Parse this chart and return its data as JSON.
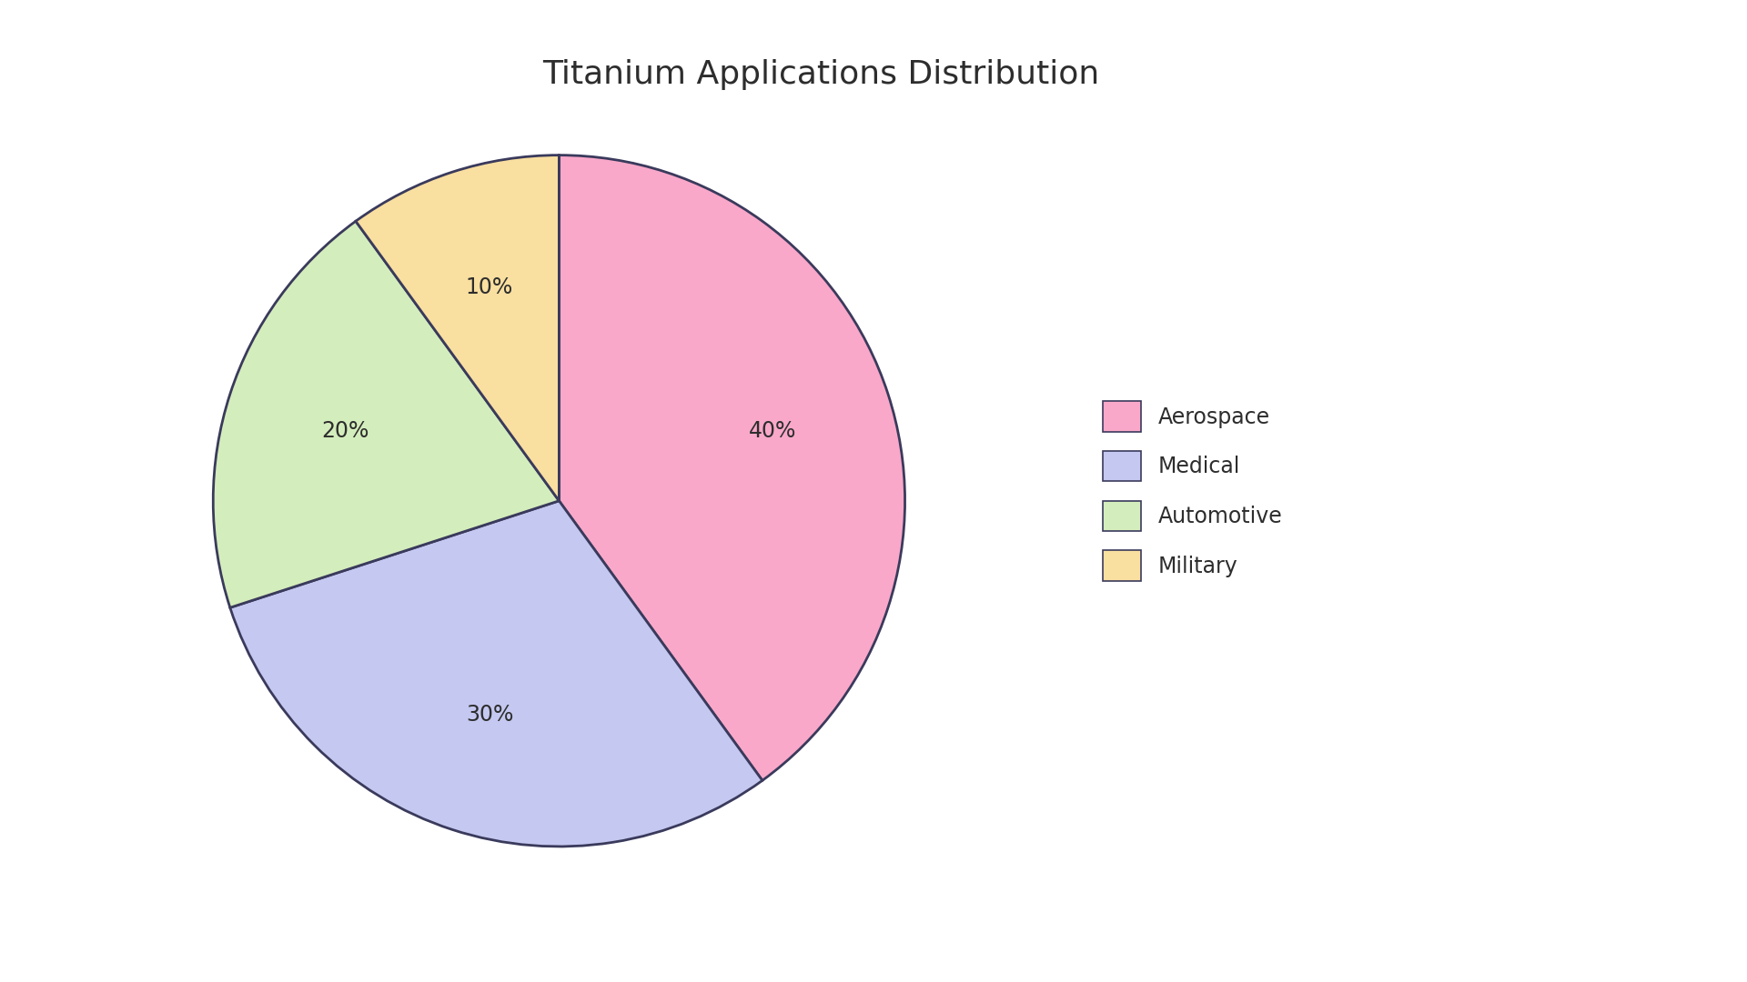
{
  "title": "Titanium Applications Distribution",
  "labels": [
    "Aerospace",
    "Medical",
    "Automotive",
    "Military"
  ],
  "values": [
    40,
    30,
    20,
    10
  ],
  "colors": [
    "#F9A8C9",
    "#C5C8F0",
    "#D4EDBC",
    "#F9DFA0"
  ],
  "edge_color": "#3a3a5c",
  "text_color": "#2d2d2d",
  "background_color": "#ffffff",
  "title_fontsize": 26,
  "label_fontsize": 17,
  "legend_fontsize": 17,
  "startangle": 90
}
